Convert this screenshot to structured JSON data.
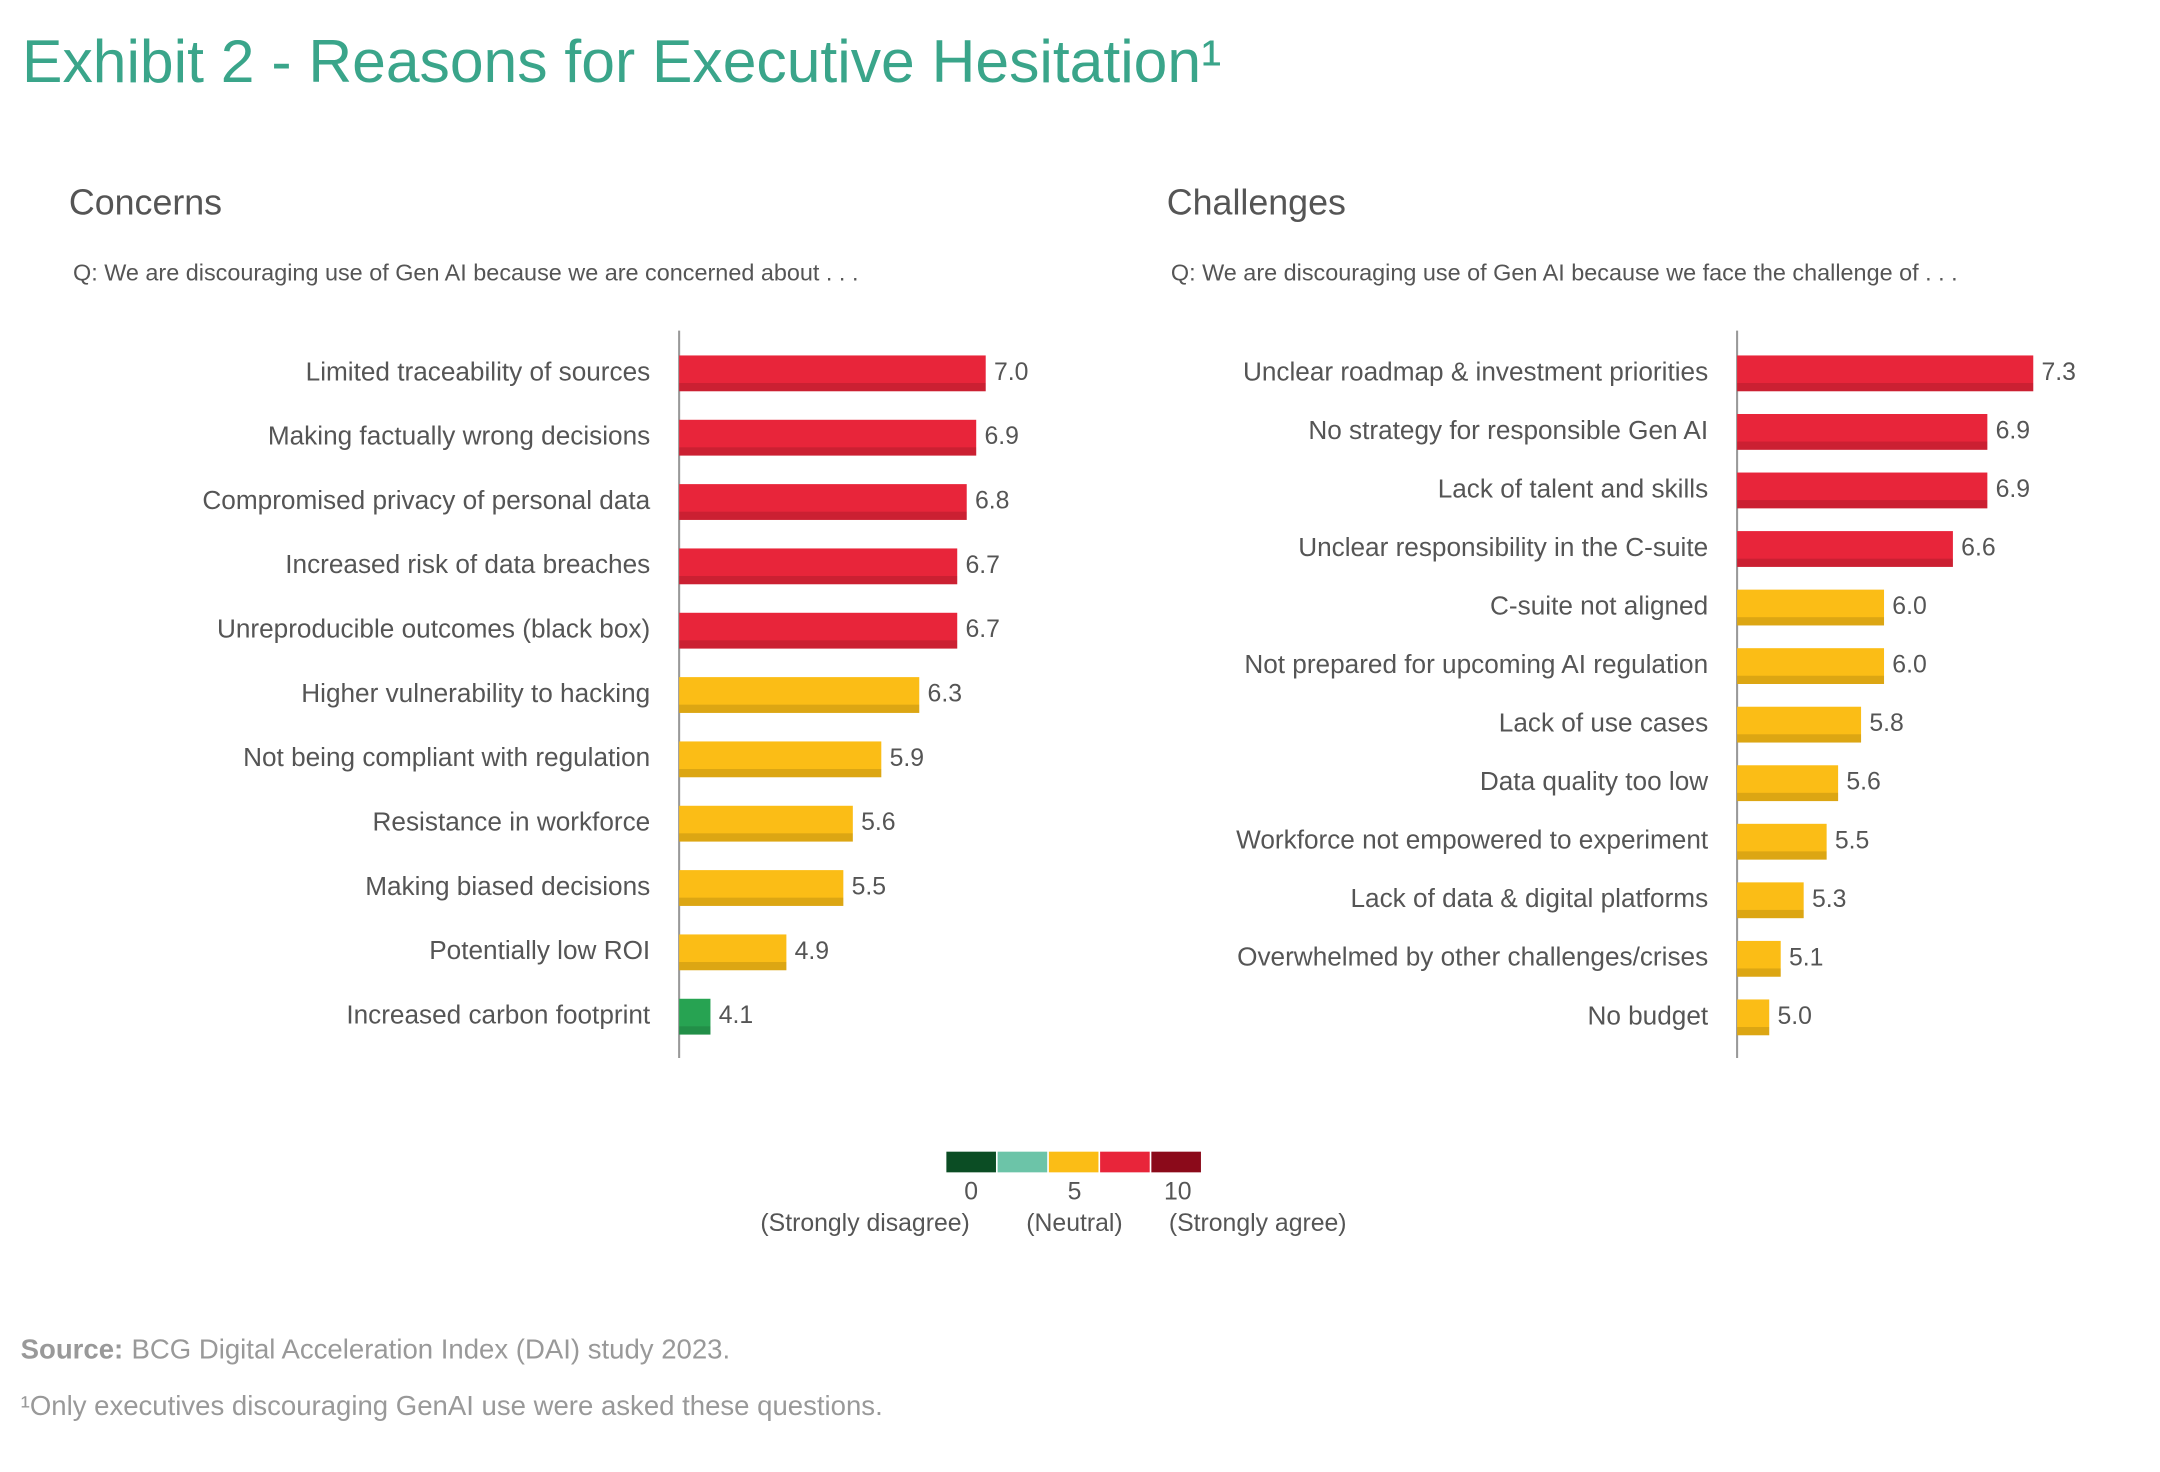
{
  "title": "Exhibit 2 - Reasons for Executive Hesitation¹",
  "chart_data": [
    {
      "type": "bar",
      "orientation": "horizontal",
      "title": "Concerns",
      "subtitle": "Q: We are discouraging use of Gen AI because we are concerned about . . .",
      "categories": [
        "Limited traceability of sources",
        "Making factually wrong decisions",
        "Compromised privacy of personal data",
        "Increased risk of data breaches",
        "Unreproducible outcomes (black box)",
        "Higher vulnerability to hacking",
        "Not being compliant with regulation",
        "Resistance in workforce",
        "Making biased decisions",
        "Potentially low ROI",
        "Increased carbon footprint"
      ],
      "values": [
        7.0,
        6.9,
        6.8,
        6.7,
        6.7,
        6.3,
        5.9,
        5.6,
        5.5,
        4.9,
        4.1
      ],
      "value_labels": [
        "7.0",
        "6.9",
        "6.8",
        "6.7",
        "6.7",
        "6.3",
        "5.9",
        "5.6",
        "5.5",
        "4.9",
        "4.1"
      ],
      "colors": [
        "#e8253a",
        "#e8253a",
        "#e8253a",
        "#e8253a",
        "#e8253a",
        "#fbbd16",
        "#fbbd16",
        "#fbbd16",
        "#fbbd16",
        "#fbbd16",
        "#27a352"
      ],
      "xlim": [
        3.77,
        7.5
      ]
    },
    {
      "type": "bar",
      "orientation": "horizontal",
      "title": "Challenges",
      "subtitle": "Q: We are discouraging use of Gen AI because we face the challenge of . . .",
      "categories": [
        "Unclear roadmap & investment priorities",
        "No strategy for responsible Gen AI",
        "Lack of talent and skills",
        "Unclear responsibility in the C-suite",
        "C-suite not aligned",
        "Not prepared for upcoming AI regulation",
        "Lack of use cases",
        "Data quality too low",
        "Workforce not empowered to experiment",
        "Lack of data & digital platforms",
        "Overwhelmed by other challenges/crises",
        "No budget"
      ],
      "values": [
        7.3,
        6.9,
        6.9,
        6.6,
        6.0,
        6.0,
        5.8,
        5.6,
        5.5,
        5.3,
        5.1,
        5.0
      ],
      "value_labels": [
        "7.3",
        "6.9",
        "6.9",
        "6.6",
        "6.0",
        "6.0",
        "5.8",
        "5.6",
        "5.5",
        "5.3",
        "5.1",
        "5.0"
      ],
      "colors": [
        "#e8253a",
        "#e8253a",
        "#e8253a",
        "#e8253a",
        "#fbbd16",
        "#fbbd16",
        "#fbbd16",
        "#fbbd16",
        "#fbbd16",
        "#fbbd16",
        "#fbbd16",
        "#fbbd16"
      ],
      "xlim": [
        4.72,
        7.6
      ]
    }
  ],
  "legend": {
    "colors": [
      "#0b4d24",
      "#6cc4a8",
      "#fbbd16",
      "#e8253a",
      "#8b0a1a"
    ],
    "ticks": [
      0,
      5,
      10
    ],
    "tick_labels": [
      "(Strongly disagree)",
      "(Neutral)",
      "(Strongly agree)"
    ]
  },
  "source": {
    "label": "Source:",
    "text": "BCG Digital Acceleration Index (DAI) study 2023."
  },
  "footnote": "¹Only executives discouraging GenAI use were asked these questions."
}
